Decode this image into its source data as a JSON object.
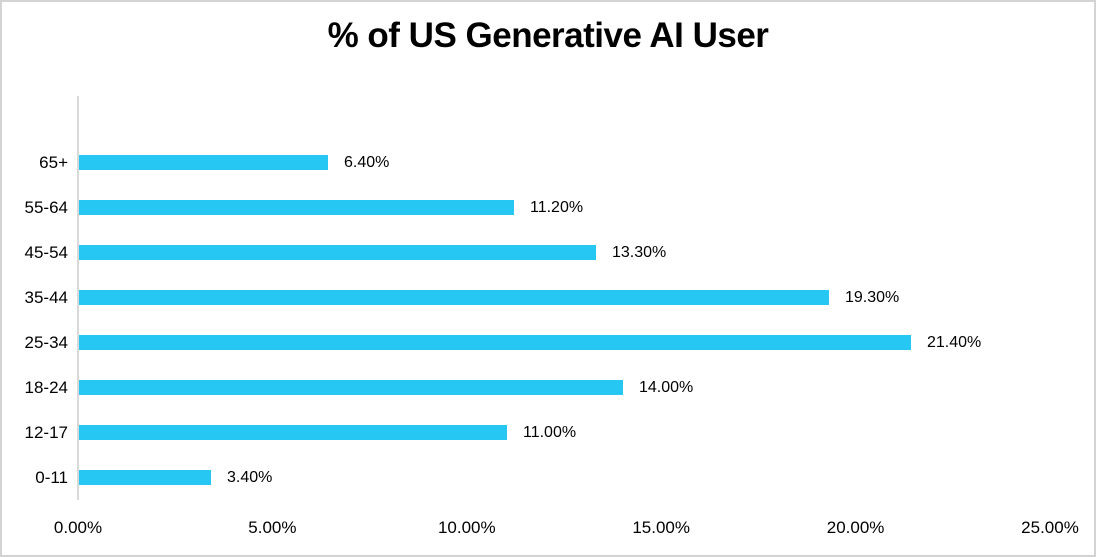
{
  "chart_data": {
    "type": "bar",
    "orientation": "horizontal",
    "title": "% of US Generative AI User",
    "categories": [
      "65+",
      "55-64",
      "45-54",
      "35-44",
      "25-34",
      "18-24",
      "12-17",
      "0-11"
    ],
    "values": [
      6.4,
      11.2,
      13.3,
      19.3,
      21.4,
      14.0,
      11.0,
      3.4
    ],
    "value_labels": [
      "6.40%",
      "11.20%",
      "13.30%",
      "19.30%",
      "21.40%",
      "14.00%",
      "11.00%",
      "3.40%"
    ],
    "x_ticks": [
      "0.00%",
      "5.00%",
      "10.00%",
      "15.00%",
      "20.00%",
      "25.00%"
    ],
    "x_tick_values": [
      0,
      5,
      10,
      15,
      20,
      25
    ],
    "xlim": [
      0,
      25
    ],
    "xlabel": "",
    "ylabel": "",
    "grid": "off",
    "legend": "none",
    "bar_color": "#27c7f4",
    "axis_line_color": "#d9d9d9",
    "border_color": "#d3d3d3",
    "text_color": "#000000",
    "background_color": "#ffffff"
  }
}
